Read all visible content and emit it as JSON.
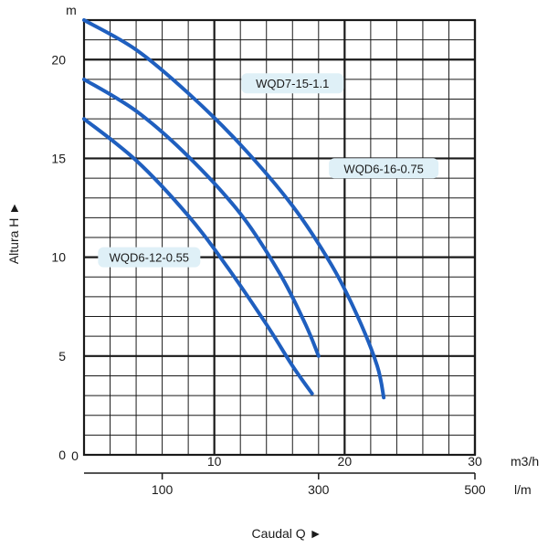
{
  "chart_data": {
    "type": "line",
    "y_unit": "m",
    "x_unit_primary": "m3/h",
    "x_unit_secondary": "l/m",
    "xlabel": "Caudal Q ►",
    "ylabel": "Altura H ►",
    "xlim": [
      0,
      30
    ],
    "ylim": [
      0,
      22
    ],
    "y_ticks": [
      0,
      5,
      10,
      15,
      20
    ],
    "x_ticks": [
      10,
      20,
      30
    ],
    "x_ticks_secondary": [
      {
        "label": "100",
        "m3h": 6
      },
      {
        "label": "300",
        "m3h": 18
      },
      {
        "label": "500",
        "m3h": 30
      }
    ],
    "grid": true,
    "series": [
      {
        "name": "WQD7-15-1.1",
        "x": [
          0,
          4,
          8,
          12,
          16,
          19,
          21,
          22.5,
          23
        ],
        "y": [
          22,
          20.5,
          18.3,
          15.7,
          12.6,
          9.6,
          7.0,
          4.5,
          2.9
        ]
      },
      {
        "name": "WQD6-16-0.75",
        "x": [
          0,
          4,
          8,
          12,
          15,
          17,
          18
        ],
        "y": [
          19,
          17.4,
          15.1,
          12.2,
          9.2,
          6.6,
          5.0
        ]
      },
      {
        "name": "WQD6-12-0.55",
        "x": [
          0,
          4,
          8,
          11,
          14,
          16,
          17.5
        ],
        "y": [
          17,
          14.9,
          12.1,
          9.5,
          6.6,
          4.5,
          3.1
        ]
      }
    ],
    "annotations": [
      {
        "text": "WQD7-15-1.1",
        "series": 0
      },
      {
        "text": "WQD6-16-0.75",
        "series": 1
      },
      {
        "text": "WQD6-12-0.55",
        "series": 2
      }
    ],
    "colors": {
      "curve": "#1f5fbf",
      "label_bg": "#dff0f7",
      "grid": "#1a1a1a"
    }
  }
}
